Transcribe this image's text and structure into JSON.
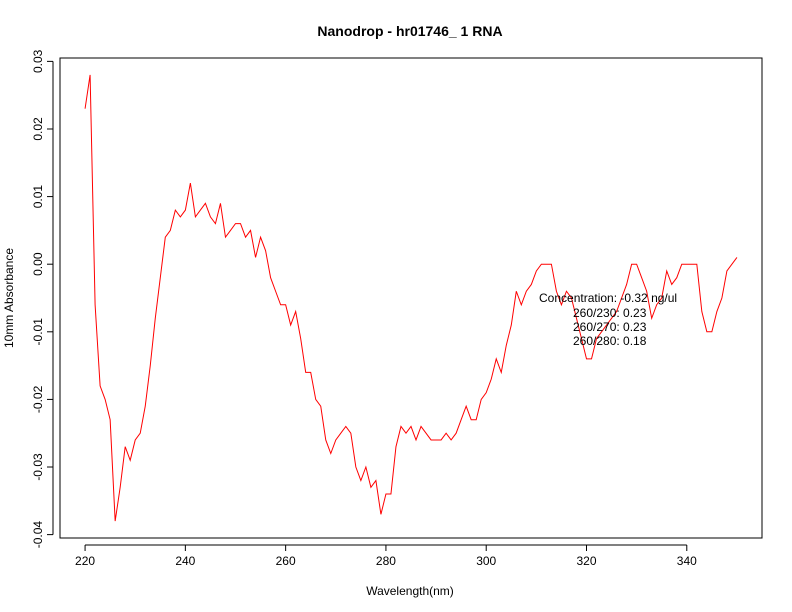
{
  "chart_data": {
    "type": "line",
    "title": "Nanodrop - hr01746_ 1 RNA",
    "xlabel": "Wavelength(nm)",
    "ylabel": "10mm Absorbance",
    "xlim": [
      215,
      355
    ],
    "ylim": [
      -0.0405,
      0.0305
    ],
    "x_ticks": [
      220,
      240,
      260,
      280,
      300,
      320,
      340
    ],
    "x_tick_labels": [
      "220",
      "240",
      "260",
      "280",
      "300",
      "320",
      "340"
    ],
    "y_ticks": [
      -0.04,
      -0.03,
      -0.02,
      -0.01,
      0.0,
      0.01,
      0.02,
      0.03
    ],
    "y_tick_labels": [
      "-0.04",
      "-0.03",
      "-0.02",
      "-0.01",
      "0.00",
      "0.01",
      "0.02",
      "0.03"
    ],
    "grid": false,
    "legend": "none",
    "series": [
      {
        "color": "#ff0000",
        "x": [
          220,
          221,
          222,
          223,
          224,
          225,
          226,
          227,
          228,
          229,
          230,
          231,
          232,
          233,
          234,
          235,
          236,
          237,
          238,
          239,
          240,
          241,
          242,
          243,
          244,
          245,
          246,
          247,
          248,
          249,
          250,
          251,
          252,
          253,
          254,
          255,
          256,
          257,
          258,
          259,
          260,
          261,
          262,
          263,
          264,
          265,
          266,
          267,
          268,
          269,
          270,
          271,
          272,
          273,
          274,
          275,
          276,
          277,
          278,
          279,
          280,
          281,
          282,
          283,
          284,
          285,
          286,
          287,
          288,
          289,
          290,
          291,
          292,
          293,
          294,
          295,
          296,
          297,
          298,
          299,
          300,
          301,
          302,
          303,
          304,
          305,
          306,
          307,
          308,
          309,
          310,
          311,
          312,
          313,
          314,
          315,
          316,
          317,
          318,
          319,
          320,
          321,
          322,
          323,
          324,
          325,
          326,
          327,
          328,
          329,
          330,
          331,
          332,
          333,
          334,
          335,
          336,
          337,
          338,
          339,
          340,
          341,
          342,
          343,
          344,
          345,
          346,
          347,
          348,
          349,
          350
        ],
        "y": [
          0.023,
          0.028,
          -0.006,
          -0.018,
          -0.02,
          -0.023,
          -0.038,
          -0.033,
          -0.027,
          -0.029,
          -0.026,
          -0.025,
          -0.021,
          -0.015,
          -0.008,
          -0.002,
          0.004,
          0.005,
          0.008,
          0.007,
          0.008,
          0.012,
          0.007,
          0.008,
          0.009,
          0.007,
          0.006,
          0.009,
          0.004,
          0.005,
          0.006,
          0.006,
          0.004,
          0.005,
          0.001,
          0.004,
          0.002,
          -0.002,
          -0.004,
          -0.006,
          -0.006,
          -0.009,
          -0.007,
          -0.011,
          -0.016,
          -0.016,
          -0.02,
          -0.021,
          -0.026,
          -0.028,
          -0.026,
          -0.025,
          -0.024,
          -0.025,
          -0.03,
          -0.032,
          -0.03,
          -0.033,
          -0.032,
          -0.037,
          -0.034,
          -0.034,
          -0.027,
          -0.024,
          -0.025,
          -0.024,
          -0.026,
          -0.024,
          -0.025,
          -0.026,
          -0.026,
          -0.026,
          -0.025,
          -0.026,
          -0.025,
          -0.023,
          -0.021,
          -0.023,
          -0.023,
          -0.02,
          -0.019,
          -0.017,
          -0.014,
          -0.016,
          -0.012,
          -0.009,
          -0.004,
          -0.006,
          -0.004,
          -0.003,
          -0.001,
          0.0,
          0.0,
          0.0,
          -0.004,
          -0.006,
          -0.004,
          -0.005,
          -0.008,
          -0.011,
          -0.014,
          -0.014,
          -0.011,
          -0.01,
          -0.009,
          -0.008,
          -0.007,
          -0.005,
          -0.003,
          0.0,
          0.0,
          -0.002,
          -0.004,
          -0.008,
          -0.006,
          -0.005,
          -0.001,
          -0.003,
          -0.002,
          0.0,
          0.0,
          0.0,
          0.0,
          -0.007,
          -0.01,
          -0.01,
          -0.007,
          -0.005,
          -0.001,
          0.0,
          0.001
        ]
      }
    ],
    "annotations": {
      "concentration": "Concentration: -0.32 ng/ul",
      "ratio_260_230": "260/230: 0.23",
      "ratio_260_270": "260/270: 0.23",
      "ratio_260_280": "260/280: 0.18"
    }
  }
}
